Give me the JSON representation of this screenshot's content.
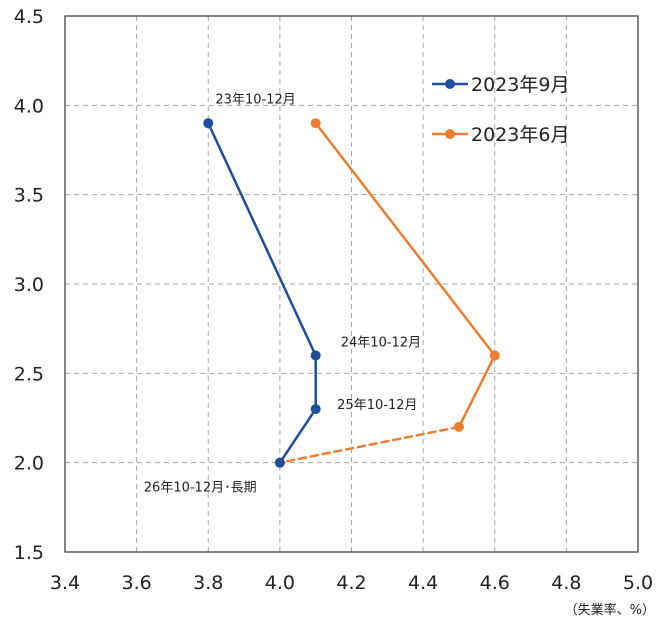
{
  "chart_data": {
    "type": "line",
    "xlabel": "（失業率、%）",
    "ylabel": "",
    "xlim": [
      3.4,
      5.0
    ],
    "ylim": [
      1.5,
      4.5
    ],
    "xticks": [
      "3.4",
      "3.6",
      "3.8",
      "4.0",
      "4.2",
      "4.4",
      "4.6",
      "4.8",
      "5.0"
    ],
    "yticks": [
      "1.5",
      "2.0",
      "2.5",
      "3.0",
      "3.5",
      "4.0",
      "4.5"
    ],
    "grid": true,
    "legend_position": "top-right",
    "series": [
      {
        "name": "2023年9月",
        "color": "#1f4e9e",
        "points": [
          {
            "x": 3.8,
            "y": 3.9
          },
          {
            "x": 4.1,
            "y": 2.6
          },
          {
            "x": 4.1,
            "y": 2.3
          },
          {
            "x": 4.0,
            "y": 2.0
          }
        ],
        "dashed_last_segment": false
      },
      {
        "name": "2023年6月",
        "color": "#ed7d31",
        "points": [
          {
            "x": 4.1,
            "y": 3.9
          },
          {
            "x": 4.6,
            "y": 2.6
          },
          {
            "x": 4.5,
            "y": 2.2
          },
          {
            "x": 4.0,
            "y": 2.0
          }
        ],
        "dashed_last_segment": true
      }
    ],
    "annotations": [
      {
        "text": "23年10-12月",
        "anchor": {
          "x": 3.82,
          "y": 4.01
        }
      },
      {
        "text": "24年10-12月",
        "anchor": {
          "x": 4.17,
          "y": 2.65
        }
      },
      {
        "text": "25年10-12月",
        "anchor": {
          "x": 4.16,
          "y": 2.3
        }
      },
      {
        "text": "26年10-12月･長期",
        "anchor": {
          "x": 3.62,
          "y": 1.84
        }
      }
    ]
  }
}
